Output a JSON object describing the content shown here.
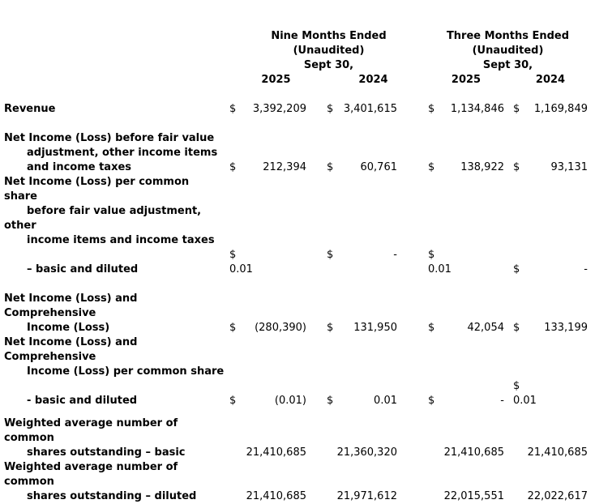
{
  "page": {
    "background_color": "#ffffff",
    "text_color": "#000000"
  },
  "table": {
    "column_group_headers": [
      {
        "title": "Nine Months Ended",
        "subtitle": "(Unaudited)",
        "date": "Sept 30,",
        "years": [
          "2025",
          "2024"
        ]
      },
      {
        "title": "Three Months Ended",
        "subtitle": "(Unaudited)",
        "date": "Sept 30,",
        "years": [
          "2025",
          "2024"
        ]
      }
    ],
    "rows_summary": [
      {
        "label": "Revenue",
        "nine_2025": "3,392,209",
        "nine_2024": "3,401,615",
        "three_2025": "1,134,846",
        "three_2024": "1,169,849"
      },
      {
        "label": "Net Income (Loss) before fair value adjustment, other income items and income taxes",
        "nine_2025": "212,394",
        "nine_2024": "60,761",
        "three_2025": "138,922",
        "three_2024": "93,131"
      },
      {
        "label": "Net Income (Loss) per common share before fair value adjustment, other income items and income taxes – basic and diluted",
        "nine_2025": "0.01",
        "nine_2024": "-",
        "three_2025": "0.01",
        "three_2024": "-"
      },
      {
        "label": "Net Income (Loss) and Comprehensive Income (Loss)",
        "nine_2025": "(280,390)",
        "nine_2024": "131,950",
        "three_2025": "42,054",
        "three_2024": "133,199"
      },
      {
        "label": "Net Income (Loss) and Comprehensive Income (Loss) per common share - basic and diluted",
        "nine_2025": "(0.01)",
        "nine_2024": "0.01",
        "three_2025": "-",
        "three_2024": "0.01"
      },
      {
        "label": "Weighted average number of common shares outstanding – basic",
        "nine_2025": "21,410,685",
        "nine_2024": "21,360,320",
        "three_2025": "21,410,685",
        "three_2024": "21,410,685"
      },
      {
        "label": "Weighted average number of common shares outstanding – diluted",
        "nine_2025": "21,410,685",
        "nine_2024": "21,971,612",
        "three_2025": "22,015,551",
        "three_2024": "22,022,617"
      }
    ],
    "lines": [
      {
        "name": "header-period-row",
        "cells": [
          {
            "c": "h-nine",
            "t": "Nine Months Ended",
            "b": true,
            "n": "nine-months-header"
          },
          {
            "c": "h-three",
            "t": "Three Months Ended",
            "b": true,
            "n": "three-months-header"
          }
        ]
      },
      {
        "name": "header-unaudited-row",
        "cells": [
          {
            "c": "h-nine",
            "t": "(Unaudited)",
            "b": true,
            "n": "nine-months-unaudited"
          },
          {
            "c": "h-three",
            "t": "(Unaudited)",
            "b": true,
            "n": "three-months-unaudited"
          }
        ]
      },
      {
        "name": "header-date-row",
        "cells": [
          {
            "c": "h-nine",
            "t": "Sept 30,",
            "b": true,
            "n": "nine-months-date"
          },
          {
            "c": "h-three",
            "t": "Sept 30,",
            "b": true,
            "n": "three-months-date"
          }
        ]
      },
      {
        "name": "header-year-row",
        "cells": [
          {
            "c": "y1",
            "t": "2025",
            "b": true,
            "n": "year-column-header"
          },
          {
            "c": "y2",
            "t": "2024",
            "b": true,
            "n": "year-column-header"
          },
          {
            "c": "y3",
            "t": "2025",
            "b": true,
            "n": "year-column-header"
          },
          {
            "c": "y4",
            "t": "2024",
            "b": true,
            "n": "year-column-header"
          }
        ]
      },
      {
        "name": "spacer-row"
      },
      {
        "name": "revenue-row",
        "cells": [
          {
            "c": "lab",
            "t": "Revenue",
            "b": true
          },
          {
            "c": "d1",
            "t": "$"
          },
          {
            "c": "v1",
            "t": "3,392,209"
          },
          {
            "c": "d2",
            "t": "$"
          },
          {
            "c": "v2",
            "t": "3,401,615"
          },
          {
            "c": "d3",
            "t": "$"
          },
          {
            "c": "v3",
            "t": "1,134,846"
          },
          {
            "c": "d4",
            "t": "$"
          },
          {
            "c": "v4",
            "t": "1,169,849"
          }
        ]
      },
      {
        "name": "spacer-row"
      },
      {
        "name": "net-income-before-fv-label-row",
        "cells": [
          {
            "c": "lab",
            "t": "Net Income (Loss) before fair value",
            "b": true
          }
        ]
      },
      {
        "name": "net-income-before-fv-label-row",
        "cells": [
          {
            "c": "lab ind",
            "t": "adjustment, other income items",
            "b": true
          }
        ]
      },
      {
        "name": "net-income-before-fv-values-row",
        "cells": [
          {
            "c": "lab ind",
            "t": "and income taxes",
            "b": true
          },
          {
            "c": "d1",
            "t": "$"
          },
          {
            "c": "v1",
            "t": "212,394"
          },
          {
            "c": "d2",
            "t": "$"
          },
          {
            "c": "v2",
            "t": "60,761"
          },
          {
            "c": "d3",
            "t": "$"
          },
          {
            "c": "v3",
            "t": "138,922"
          },
          {
            "c": "d4",
            "t": "$"
          },
          {
            "c": "v4",
            "t": "93,131"
          }
        ]
      },
      {
        "name": "per-share-before-fv-label-row",
        "cells": [
          {
            "c": "lab",
            "t": "Net Income (Loss) per common",
            "b": true
          }
        ]
      },
      {
        "name": "per-share-before-fv-label-row",
        "cells": [
          {
            "c": "lab",
            "t": "share",
            "b": true
          }
        ]
      },
      {
        "name": "per-share-before-fv-label-row",
        "cells": [
          {
            "c": "lab ind",
            "t": "before fair value adjustment,",
            "b": true
          }
        ]
      },
      {
        "name": "per-share-before-fv-label-row",
        "cells": [
          {
            "c": "lab",
            "t": "other",
            "b": true
          }
        ]
      },
      {
        "name": "per-share-before-fv-label-row",
        "cells": [
          {
            "c": "lab ind",
            "t": "income items and income taxes",
            "b": true
          }
        ]
      },
      {
        "name": "per-share-before-fv-values-wrap-row",
        "cells": [
          {
            "c": "d1",
            "t": "$"
          },
          {
            "c": "d2",
            "t": "$"
          },
          {
            "c": "v2",
            "t": "-"
          },
          {
            "c": "d3",
            "t": "$"
          }
        ]
      },
      {
        "name": "per-share-before-fv-basic-diluted-row",
        "cells": [
          {
            "c": "lab ind",
            "t": "– basic and diluted",
            "b": true
          },
          {
            "c": "g1",
            "t": "0.01"
          },
          {
            "c": "g3",
            "t": "0.01"
          },
          {
            "c": "d4",
            "t": "$"
          },
          {
            "c": "v4",
            "t": "-"
          }
        ]
      },
      {
        "name": "spacer-row"
      },
      {
        "name": "comprehensive-income-label-row",
        "cells": [
          {
            "c": "lab",
            "t": "Net Income (Loss) and",
            "b": true
          }
        ]
      },
      {
        "name": "comprehensive-income-label-row",
        "cells": [
          {
            "c": "lab",
            "t": "Comprehensive",
            "b": true
          }
        ]
      },
      {
        "name": "comprehensive-income-values-row",
        "cells": [
          {
            "c": "lab ind",
            "t": "Income (Loss)",
            "b": true
          },
          {
            "c": "d1",
            "t": "$"
          },
          {
            "c": "v1",
            "t": "(280,390)"
          },
          {
            "c": "d2",
            "t": "$"
          },
          {
            "c": "v2",
            "t": "131,950"
          },
          {
            "c": "d3",
            "t": "$"
          },
          {
            "c": "v3",
            "t": "42,054"
          },
          {
            "c": "d4",
            "t": "$"
          },
          {
            "c": "v4",
            "t": "133,199"
          }
        ]
      },
      {
        "name": "comprehensive-per-share-label-row",
        "cells": [
          {
            "c": "lab",
            "t": "Net Income (Loss) and",
            "b": true
          }
        ]
      },
      {
        "name": "comprehensive-per-share-label-row",
        "cells": [
          {
            "c": "lab",
            "t": "Comprehensive",
            "b": true
          }
        ]
      },
      {
        "name": "comprehensive-per-share-label-row",
        "cells": [
          {
            "c": "lab ind",
            "t": "Income (Loss) per common share",
            "b": true
          }
        ]
      },
      {
        "name": "comprehensive-per-share-wrap-row",
        "cells": [
          {
            "c": "d4",
            "t": "$"
          }
        ]
      },
      {
        "name": "comprehensive-per-share-basic-diluted-row",
        "cells": [
          {
            "c": "lab ind",
            "t": "- basic and diluted",
            "b": true
          },
          {
            "c": "d1",
            "t": "$"
          },
          {
            "c": "v1",
            "t": "(0.01)"
          },
          {
            "c": "d2",
            "t": "$"
          },
          {
            "c": "v2",
            "t": "0.01"
          },
          {
            "c": "d3",
            "t": "$"
          },
          {
            "c": "v3",
            "t": "-"
          },
          {
            "c": "g4",
            "t": "0.01"
          }
        ]
      },
      {
        "name": "spacer-row",
        "h": 10
      },
      {
        "name": "weighted-basic-label-row",
        "cells": [
          {
            "c": "lab",
            "t": "Weighted average number of",
            "b": true
          }
        ]
      },
      {
        "name": "weighted-basic-label-row",
        "cells": [
          {
            "c": "lab",
            "t": "common",
            "b": true
          }
        ]
      },
      {
        "name": "weighted-basic-values-row",
        "cells": [
          {
            "c": "lab ind",
            "t": "shares outstanding – basic",
            "b": true
          },
          {
            "c": "r1",
            "t": "21,410,685"
          },
          {
            "c": "r2",
            "t": "21,360,320"
          },
          {
            "c": "r3",
            "t": "21,410,685"
          },
          {
            "c": "r4",
            "t": "21,410,685"
          }
        ]
      },
      {
        "name": "weighted-diluted-label-row",
        "cells": [
          {
            "c": "lab",
            "t": "Weighted average number of",
            "b": true
          }
        ]
      },
      {
        "name": "weighted-diluted-label-row",
        "cells": [
          {
            "c": "lab",
            "t": "common",
            "b": true
          }
        ]
      },
      {
        "name": "weighted-diluted-values-row",
        "cells": [
          {
            "c": "lab ind",
            "t": "shares outstanding – diluted",
            "b": true
          },
          {
            "c": "r1",
            "t": "21,410,685"
          },
          {
            "c": "r2",
            "t": "21,971,612"
          },
          {
            "c": "r3",
            "t": "22,015,551"
          },
          {
            "c": "r4",
            "t": "22,022,617"
          }
        ]
      }
    ]
  }
}
